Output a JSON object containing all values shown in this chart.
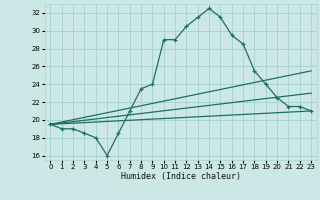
{
  "xlabel": "Humidex (Indice chaleur)",
  "xlim": [
    -0.5,
    23.5
  ],
  "ylim": [
    15.5,
    33.0
  ],
  "yticks": [
    16,
    18,
    20,
    22,
    24,
    26,
    28,
    30,
    32
  ],
  "xticks": [
    0,
    1,
    2,
    3,
    4,
    5,
    6,
    7,
    8,
    9,
    10,
    11,
    12,
    13,
    14,
    15,
    16,
    17,
    18,
    19,
    20,
    21,
    22,
    23
  ],
  "background_color": "#cce8e6",
  "grid_color": "#aad4d0",
  "line_color": "#1e6e66",
  "line1_x": [
    0,
    1,
    2,
    3,
    4,
    5,
    6,
    7,
    8,
    9,
    10,
    11,
    12,
    13,
    14,
    15,
    16,
    17,
    18,
    19,
    20,
    21,
    22,
    23
  ],
  "line1_y": [
    19.5,
    19.0,
    19.0,
    18.5,
    18.0,
    16.0,
    18.5,
    21.0,
    23.5,
    24.0,
    29.0,
    29.0,
    30.5,
    31.5,
    32.5,
    31.5,
    29.5,
    28.5,
    25.5,
    24.0,
    22.5,
    21.5,
    21.5,
    21.0
  ],
  "line2_x": [
    0,
    23
  ],
  "line2_y": [
    19.5,
    21.0
  ],
  "line3_x": [
    0,
    23
  ],
  "line3_y": [
    19.5,
    23.0
  ],
  "line4_x": [
    0,
    23
  ],
  "line4_y": [
    19.5,
    25.5
  ]
}
